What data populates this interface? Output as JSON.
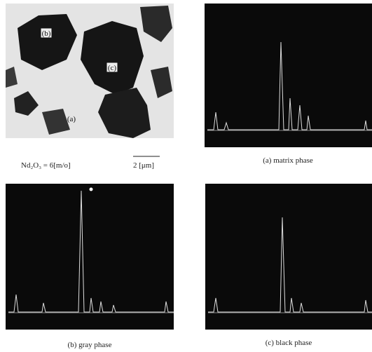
{
  "figure": {
    "micrograph": {
      "labels": [
        "(b)",
        "(c)",
        "(a)"
      ],
      "caption": "Nd₂O₃ = 6[m/o]",
      "scale_bar": "2 [μm]"
    },
    "panels": [
      {
        "caption": "(a) matrix phase"
      },
      {
        "caption": "(b) gray phase"
      },
      {
        "caption": "(c) black phase"
      }
    ]
  }
}
